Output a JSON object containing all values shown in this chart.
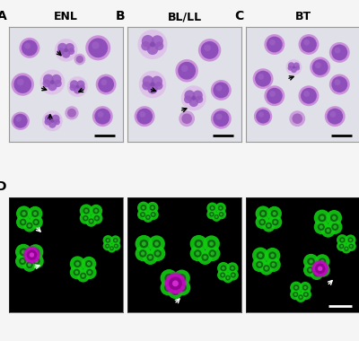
{
  "panel_labels": [
    "A",
    "B",
    "C",
    "D"
  ],
  "panel_titles_top": [
    "ENL",
    "BL/LL",
    "BT"
  ],
  "bg_light": "#e8e8ec",
  "bg_dark": "#000000",
  "cell_purple_outer": "#b878c8",
  "cell_purple_inner": "#7845a0",
  "cell_lobed_outer": "#c890d8",
  "cell_lobed_inner": "#9060b8",
  "cell_green": "#22ee22",
  "cell_green_dark": "#003300",
  "cell_magenta": "#dd00dd",
  "cell_magenta_dark": "#880088",
  "label_fontsize": 10,
  "title_fontsize": 9,
  "fig_bg": "#f5f5f5"
}
